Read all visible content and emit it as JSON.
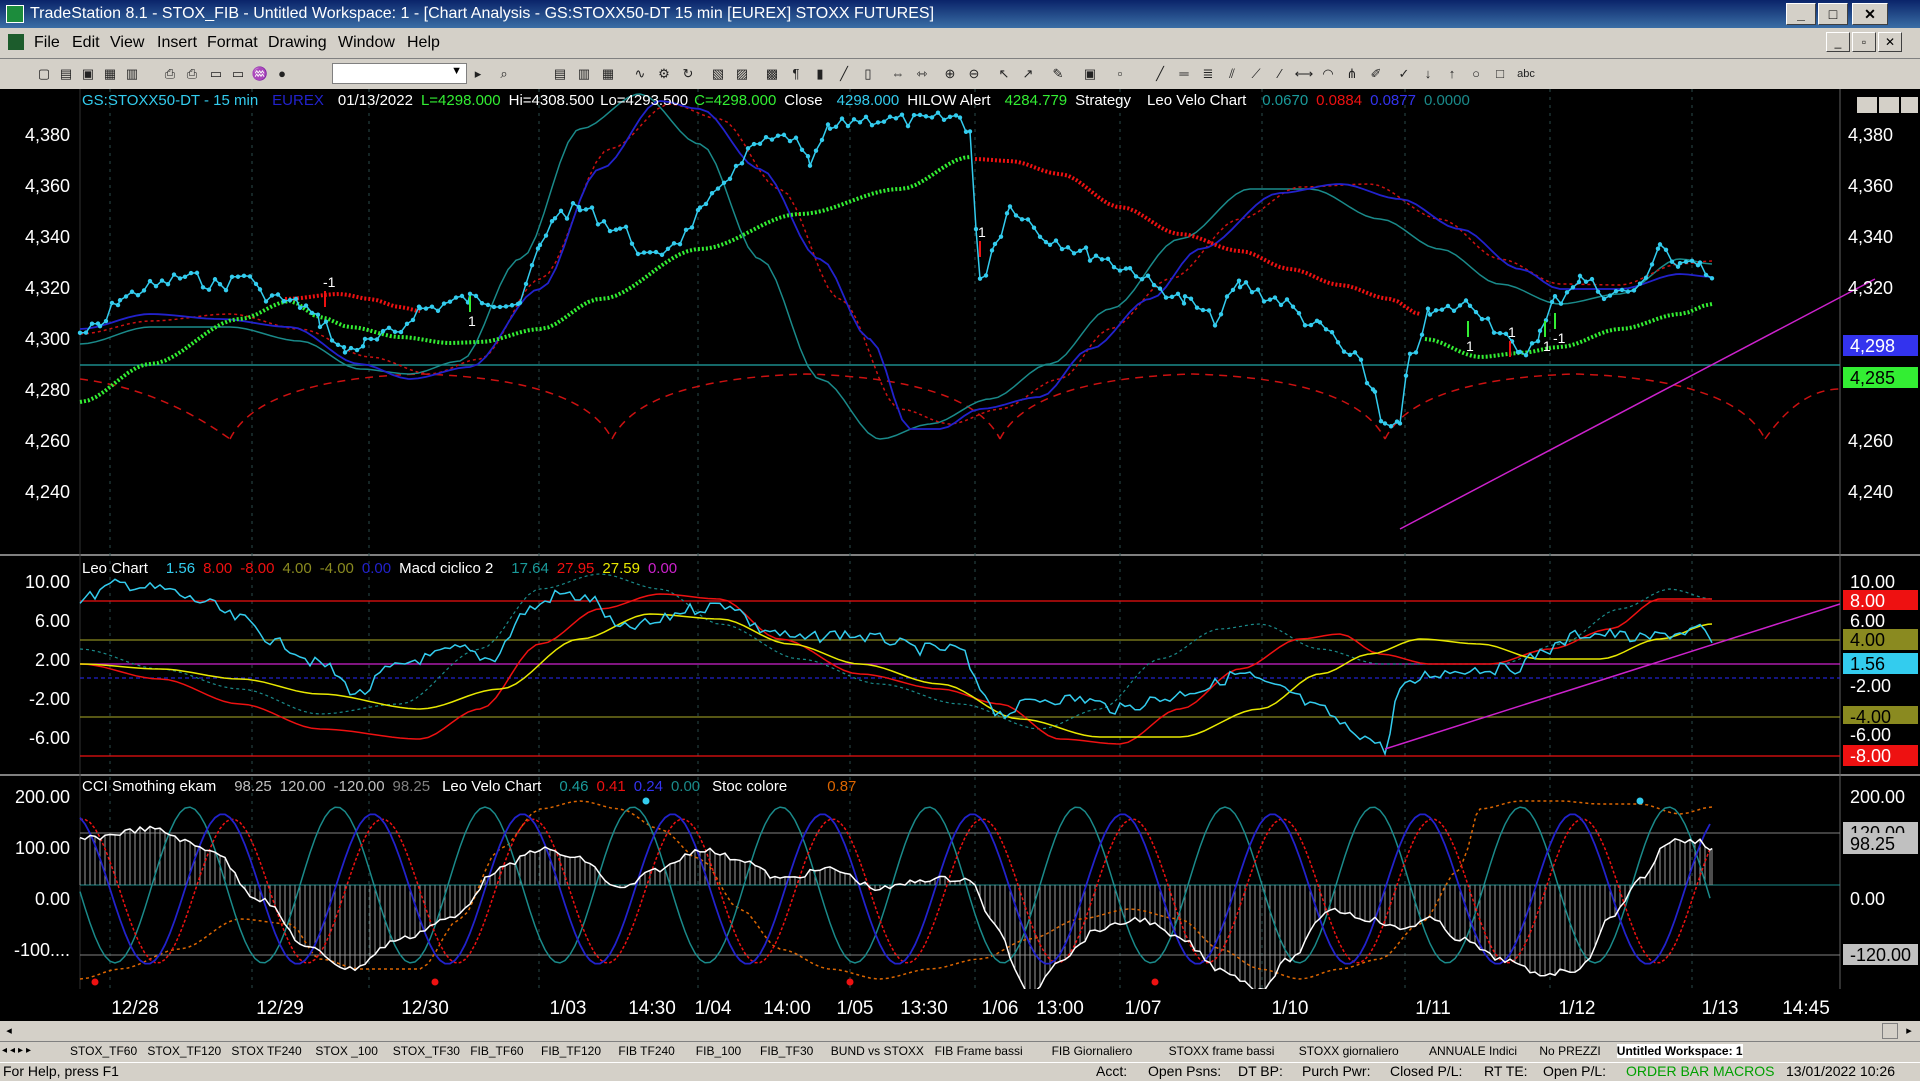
{
  "window": {
    "title": "TradeStation 8.1 - STOX_FIB - Untitled Workspace:  1 - [Chart Analysis - GS:STOXX50-DT  15 min  [EUREX] STOXX FUTURES]",
    "min_btn": "_",
    "max_btn": "□",
    "close_btn": "✕"
  },
  "menu": {
    "items": [
      "File",
      "Edit",
      "View",
      "Insert",
      "Format",
      "Drawing",
      "Window",
      "Help"
    ]
  },
  "price_pane": {
    "symbol": "GS:STOXX50-DT - 15 min",
    "exchange": "EUREX",
    "date": "01/13/2022",
    "last": "L=4298.000",
    "high": "Hi=4308.500",
    "low": "Lo=4293.500",
    "close": "C=4298.000",
    "close_label": "Close",
    "close_value": "4298.000",
    "hilow_label": "HILOW Alert",
    "hilow_value": "4284.779",
    "strategy_label": "Strategy",
    "velo_label": "Leo Velo Chart",
    "velo_values": [
      "0.0670",
      "0.0884",
      "0.0877",
      "0.0000"
    ],
    "y_ticks": [
      "4,380",
      "4,360",
      "4,340",
      "4,320",
      "4,300",
      "4,280",
      "4,260",
      "4,240"
    ],
    "price_badge": "4,298",
    "hilow_badge": "4,285"
  },
  "leo_pane": {
    "label": "Leo Chart",
    "values": [
      "1.56",
      "8.00",
      "-8.00",
      "4.00",
      "-4.00",
      "0.00"
    ],
    "macd_label": "Macd ciclico 2",
    "macd_values": [
      "17.64",
      "27.95",
      "27.59",
      "0.00"
    ],
    "y_ticks": [
      "10.00",
      "6.00",
      "2.00",
      "-2.00",
      "-6.00"
    ],
    "badges": [
      "10.00",
      "8.00",
      "6.00",
      "4.00",
      "1.56",
      "-2.00",
      "-4.00",
      "-6.00",
      "-8.00"
    ]
  },
  "cci_pane": {
    "label": "CCI Smothing ekam",
    "values": [
      "98.25",
      "120.00",
      "-120.00",
      "98.25"
    ],
    "velo_label": "Leo Velo Chart",
    "velo_values": [
      "0.46",
      "0.41",
      "0.24",
      "0.00"
    ],
    "stoc_label": "Stoc colore",
    "stoc_value": "0.87",
    "y_ticks": [
      "200.00",
      "100.00",
      "0.00",
      "-100...."
    ],
    "badges": [
      "200.00",
      "120.00",
      "98.25",
      "0.00",
      "-120.00"
    ]
  },
  "time_axis": [
    "12/28",
    "12/29",
    "12/30",
    "1/03",
    "14:30",
    "1/04",
    "14:00",
    "1/05",
    "13:30",
    "1/06",
    "13:00",
    "1/07",
    "1/10",
    "1/11",
    "1/12",
    "1/13",
    "14:45"
  ],
  "signal_labels": [
    "-1",
    "1",
    "1",
    "1",
    "1",
    "-1",
    "1"
  ],
  "workspace_tabs": [
    "STOX_TF60",
    "STOX_TF120",
    "STOX TF240",
    "STOX _100",
    "STOX_TF30",
    "FIB_TF60",
    "FIB_TF120",
    "FIB TF240",
    "FIB_100",
    "FIB_TF30",
    "BUND vs STOXX",
    "FIB Frame bassi",
    "FIB Giornaliero",
    "STOXX frame bassi",
    "STOXX giornaliero",
    "ANNUALE Indici",
    "No PREZZI",
    "Untitled Workspace: 1"
  ],
  "status": {
    "help": "For Help, press F1",
    "acct": "Acct:",
    "open_psns": "Open Psns:",
    "dt_bp": "DT BP:",
    "purch_pwr": "Purch Pwr:",
    "closed_pl": "Closed P/L:",
    "rt_te": "RT TE:",
    "open_pl": "Open P/L:",
    "order_bar": "ORDER BAR",
    "macros": "MACROS",
    "datetime": "13/01/2022 10:26"
  },
  "colors": {
    "price": "#33ccee",
    "green_ma": "#33ee33",
    "red_ma": "#ee1111",
    "blue": "#2222cc",
    "teal": "#1a9a9a",
    "yellow": "#e8e800",
    "magenta": "#cc22cc",
    "hline_red": "#ff0000",
    "hline_olive": "#8a8a20"
  }
}
